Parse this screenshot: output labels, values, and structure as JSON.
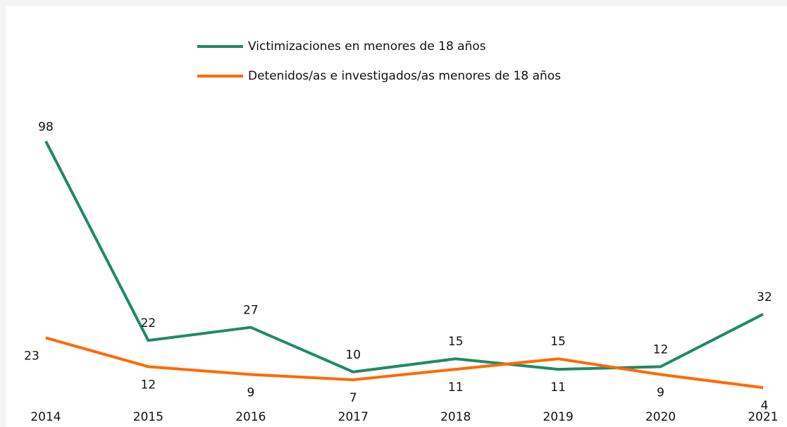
{
  "chart_data": {
    "type": "line",
    "categories": [
      "2014",
      "2015",
      "2016",
      "2017",
      "2018",
      "2019",
      "2020",
      "2021"
    ],
    "series": [
      {
        "name": "Victimizaciones en menores de 18 años",
        "color": "#1e8a68",
        "values": [
          98,
          22,
          27,
          10,
          15,
          11,
          12,
          32
        ]
      },
      {
        "name": "Detenidos/as e investigados/as menores de 18 años",
        "color": "#ff6a00",
        "values": [
          23,
          12,
          9,
          7,
          11,
          15,
          9,
          4
        ]
      }
    ],
    "ylim": [
      0,
      100
    ],
    "legend": "top"
  }
}
